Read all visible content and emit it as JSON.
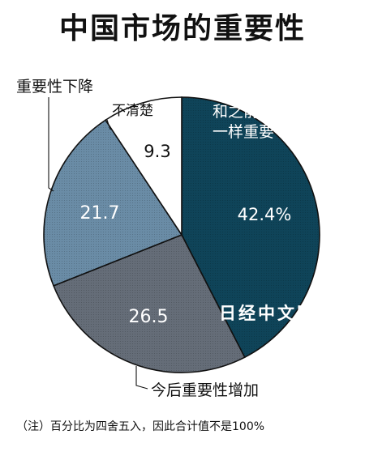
{
  "title": "中国市场的重要性",
  "note": "（注）百分比为四舍五入，因此合计值不是100%",
  "watermark": "日经中文网",
  "chart_data": {
    "type": "pie",
    "title": "中国市场的重要性",
    "start_angle_deg": 0,
    "direction": "clockwise",
    "slices": [
      {
        "name": "和之前一样重要",
        "name_lines": [
          "和之前",
          "一样重要"
        ],
        "value": 42.4,
        "label": "42.4%",
        "color": "#0f4459"
      },
      {
        "name": "今后重要性增加",
        "name_lines": [
          "今后重要性增加"
        ],
        "value": 26.5,
        "label": "26.5",
        "color": "#656d78"
      },
      {
        "name": "重要性下降",
        "name_lines": [
          "重要性下降"
        ],
        "value": 21.7,
        "label": "21.7",
        "color": "#6a8ca6"
      },
      {
        "name": "不清楚",
        "name_lines": [
          "不清楚"
        ],
        "value": 9.3,
        "label": "9.3",
        "color": "#ffffff"
      }
    ]
  }
}
